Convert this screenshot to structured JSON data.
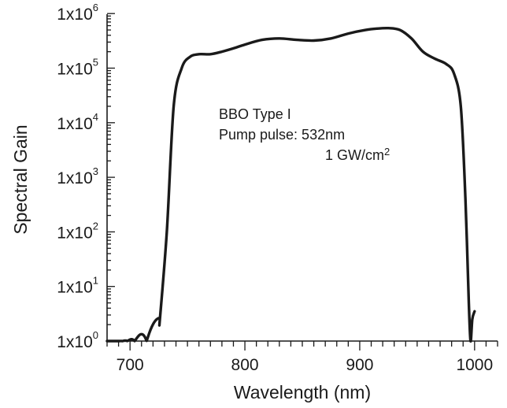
{
  "chart_data": {
    "type": "line",
    "xlabel": "Wavelength (nm)",
    "ylabel": "Spectral Gain",
    "xlim": [
      680,
      1020
    ],
    "ylim": [
      1,
      1000000
    ],
    "y_scale": "log",
    "x_ticks": [
      700,
      800,
      900,
      1000
    ],
    "x_tick_labels": [
      "700",
      "800",
      "900",
      "1000"
    ],
    "y_tick_labels": [
      {
        "base": "1x10",
        "exp": "0"
      },
      {
        "base": "1x10",
        "exp": "1"
      },
      {
        "base": "1x10",
        "exp": "2"
      },
      {
        "base": "1x10",
        "exp": "3"
      },
      {
        "base": "1x10",
        "exp": "4"
      },
      {
        "base": "1x10",
        "exp": "5"
      },
      {
        "base": "1x10",
        "exp": "6"
      }
    ],
    "grid": false,
    "annotation": {
      "line1": "BBO Type I",
      "line2": "Pump pulse: 532nm",
      "line3_base": "1 GW/cm",
      "line3_sup": "2"
    },
    "series": [
      {
        "x": [
          680,
          726,
          732,
          738,
          745,
          752,
          760,
          770,
          780,
          790,
          800,
          815,
          830,
          845,
          860,
          875,
          890,
          905,
          915,
          925,
          935,
          945,
          955,
          965,
          975,
          982,
          988,
          992,
          995,
          996.5,
          998,
          1000
        ],
        "y": [
          1,
          2.5,
          100,
          20000,
          100000,
          160000,
          180000,
          180000,
          200000,
          230000,
          270000,
          330000,
          350000,
          330000,
          320000,
          350000,
          430000,
          500000,
          530000,
          540000,
          500000,
          350000,
          200000,
          150000,
          120000,
          80000,
          20000,
          400,
          5,
          1,
          2.5,
          3.5
        ]
      }
    ],
    "oscillation_region": {
      "x_start": 686,
      "x_end": 726,
      "y_min": 1,
      "y_max": 2.9
    }
  }
}
